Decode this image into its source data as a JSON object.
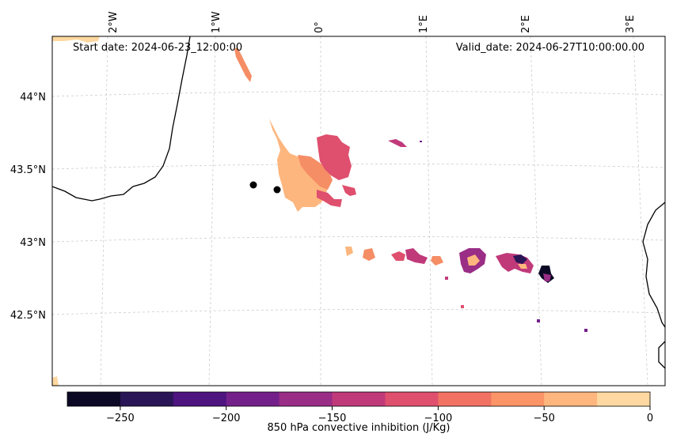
{
  "header": {
    "start_date": "Start date: 2024-06-23_12:00:00",
    "valid_date": "Valid_date: 2024-06-27T10:00:00.00"
  },
  "axes": {
    "lon_labels": [
      "2°W",
      "1°W",
      "0°",
      "1°E",
      "2°E",
      "3°E"
    ],
    "lat_labels": [
      "44°N",
      "43.5°N",
      "43°N",
      "42.5°N"
    ]
  },
  "colorbar": {
    "label": "850 hPa convective inhibition (J/Kg)",
    "ticks": [
      "−250",
      "−200",
      "−150",
      "−100",
      "−50",
      "0"
    ],
    "bin_edges": [
      -275,
      -250,
      -225,
      -200,
      -175,
      -150,
      -125,
      -100,
      -75,
      -50,
      -25,
      0
    ],
    "colors": [
      "#0b0924",
      "#2a1556",
      "#4e1480",
      "#74208a",
      "#9a2d86",
      "#c03a7a",
      "#df4f6e",
      "#f17262",
      "#fb9467",
      "#fdb67e",
      "#fed8a0"
    ]
  },
  "colors": {
    "coast": "#000000",
    "grid": "#cccccc",
    "cin_light": "#fdb67e",
    "cin_orange": "#f58d65",
    "cin_red": "#df4f6e",
    "cin_pink": "#c03a7a",
    "cin_purple": "#74208a",
    "cin_dark": "#2a1556",
    "cin_pale": "#fed8a0"
  }
}
